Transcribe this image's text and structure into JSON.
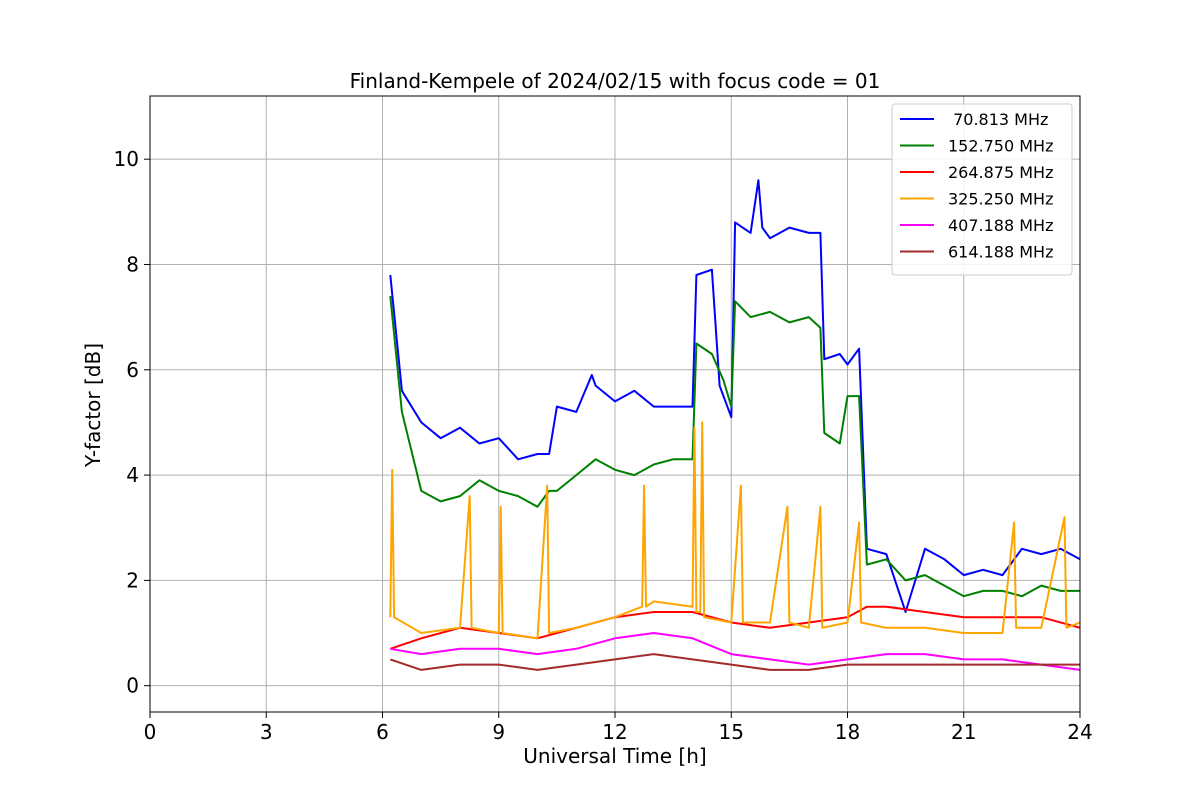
{
  "chart_data": {
    "type": "line",
    "title": "Finland-Kempele of 2024/02/15 with focus code = 01",
    "xlabel": "Universal Time [h]",
    "ylabel": "Y-factor [dB]",
    "xlim": [
      0,
      24
    ],
    "ylim": [
      -0.5,
      11.2
    ],
    "xticks": [
      0,
      3,
      6,
      9,
      12,
      15,
      18,
      21,
      24
    ],
    "yticks": [
      0,
      2,
      4,
      6,
      8,
      10
    ],
    "grid": true,
    "legend_position": "top-right",
    "series": [
      {
        "name": " 70.813 MHz",
        "color": "#0000ff",
        "points": [
          [
            6.2,
            7.8
          ],
          [
            6.5,
            5.6
          ],
          [
            7.0,
            5.0
          ],
          [
            7.5,
            4.7
          ],
          [
            8.0,
            4.9
          ],
          [
            8.5,
            4.6
          ],
          [
            9.0,
            4.7
          ],
          [
            9.5,
            4.3
          ],
          [
            10.0,
            4.4
          ],
          [
            10.3,
            4.4
          ],
          [
            10.5,
            5.3
          ],
          [
            11.0,
            5.2
          ],
          [
            11.4,
            5.9
          ],
          [
            11.5,
            5.7
          ],
          [
            12.0,
            5.4
          ],
          [
            12.5,
            5.6
          ],
          [
            13.0,
            5.3
          ],
          [
            13.5,
            5.3
          ],
          [
            14.0,
            5.3
          ],
          [
            14.1,
            7.8
          ],
          [
            14.5,
            7.9
          ],
          [
            14.7,
            5.7
          ],
          [
            15.0,
            5.1
          ],
          [
            15.1,
            8.8
          ],
          [
            15.5,
            8.6
          ],
          [
            15.7,
            9.6
          ],
          [
            15.8,
            8.7
          ],
          [
            16.0,
            8.5
          ],
          [
            16.5,
            8.7
          ],
          [
            17.0,
            8.6
          ],
          [
            17.3,
            8.6
          ],
          [
            17.4,
            6.2
          ],
          [
            17.8,
            6.3
          ],
          [
            18.0,
            6.1
          ],
          [
            18.3,
            6.4
          ],
          [
            18.5,
            2.6
          ],
          [
            19.0,
            2.5
          ],
          [
            19.5,
            1.4
          ],
          [
            20.0,
            2.6
          ],
          [
            20.5,
            2.4
          ],
          [
            21.0,
            2.1
          ],
          [
            21.5,
            2.2
          ],
          [
            22.0,
            2.1
          ],
          [
            22.5,
            2.6
          ],
          [
            23.0,
            2.5
          ],
          [
            23.5,
            2.6
          ],
          [
            24.0,
            2.4
          ]
        ]
      },
      {
        "name": "152.750 MHz",
        "color": "#008000",
        "points": [
          [
            6.2,
            7.4
          ],
          [
            6.5,
            5.2
          ],
          [
            7.0,
            3.7
          ],
          [
            7.5,
            3.5
          ],
          [
            8.0,
            3.6
          ],
          [
            8.5,
            3.9
          ],
          [
            9.0,
            3.7
          ],
          [
            9.5,
            3.6
          ],
          [
            10.0,
            3.4
          ],
          [
            10.3,
            3.7
          ],
          [
            10.5,
            3.7
          ],
          [
            11.0,
            4.0
          ],
          [
            11.5,
            4.3
          ],
          [
            12.0,
            4.1
          ],
          [
            12.5,
            4.0
          ],
          [
            13.0,
            4.2
          ],
          [
            13.5,
            4.3
          ],
          [
            14.0,
            4.3
          ],
          [
            14.1,
            6.5
          ],
          [
            14.5,
            6.3
          ],
          [
            14.8,
            5.8
          ],
          [
            15.0,
            5.3
          ],
          [
            15.1,
            7.3
          ],
          [
            15.5,
            7.0
          ],
          [
            16.0,
            7.1
          ],
          [
            16.5,
            6.9
          ],
          [
            17.0,
            7.0
          ],
          [
            17.3,
            6.8
          ],
          [
            17.4,
            4.8
          ],
          [
            17.8,
            4.6
          ],
          [
            18.0,
            5.5
          ],
          [
            18.3,
            5.5
          ],
          [
            18.5,
            2.3
          ],
          [
            19.0,
            2.4
          ],
          [
            19.5,
            2.0
          ],
          [
            20.0,
            2.1
          ],
          [
            20.5,
            1.9
          ],
          [
            21.0,
            1.7
          ],
          [
            21.5,
            1.8
          ],
          [
            22.0,
            1.8
          ],
          [
            22.5,
            1.7
          ],
          [
            23.0,
            1.9
          ],
          [
            23.5,
            1.8
          ],
          [
            24.0,
            1.8
          ]
        ]
      },
      {
        "name": "264.875 MHz",
        "color": "#ff0000",
        "points": [
          [
            6.2,
            0.7
          ],
          [
            7.0,
            0.9
          ],
          [
            8.0,
            1.1
          ],
          [
            9.0,
            1.0
          ],
          [
            10.0,
            0.9
          ],
          [
            11.0,
            1.1
          ],
          [
            12.0,
            1.3
          ],
          [
            13.0,
            1.4
          ],
          [
            14.0,
            1.4
          ],
          [
            15.0,
            1.2
          ],
          [
            16.0,
            1.1
          ],
          [
            17.0,
            1.2
          ],
          [
            18.0,
            1.3
          ],
          [
            18.5,
            1.5
          ],
          [
            19.0,
            1.5
          ],
          [
            20.0,
            1.4
          ],
          [
            21.0,
            1.3
          ],
          [
            22.0,
            1.3
          ],
          [
            23.0,
            1.3
          ],
          [
            24.0,
            1.1
          ]
        ]
      },
      {
        "name": "325.250 MHz",
        "color": "#ffa500",
        "points": [
          [
            6.2,
            1.3
          ],
          [
            6.25,
            4.1
          ],
          [
            6.3,
            1.3
          ],
          [
            7.0,
            1.0
          ],
          [
            8.0,
            1.1
          ],
          [
            8.25,
            3.6
          ],
          [
            8.3,
            1.1
          ],
          [
            9.0,
            1.0
          ],
          [
            9.05,
            3.4
          ],
          [
            9.1,
            1.0
          ],
          [
            10.0,
            0.9
          ],
          [
            10.25,
            3.8
          ],
          [
            10.3,
            1.0
          ],
          [
            11.0,
            1.1
          ],
          [
            12.0,
            1.3
          ],
          [
            12.7,
            1.5
          ],
          [
            12.75,
            3.8
          ],
          [
            12.8,
            1.5
          ],
          [
            13.0,
            1.6
          ],
          [
            14.0,
            1.5
          ],
          [
            14.05,
            4.9
          ],
          [
            14.1,
            1.4
          ],
          [
            14.2,
            1.4
          ],
          [
            14.25,
            5.0
          ],
          [
            14.3,
            1.3
          ],
          [
            15.0,
            1.2
          ],
          [
            15.25,
            3.8
          ],
          [
            15.3,
            1.2
          ],
          [
            16.0,
            1.2
          ],
          [
            16.45,
            3.4
          ],
          [
            16.5,
            1.2
          ],
          [
            17.0,
            1.1
          ],
          [
            17.3,
            3.4
          ],
          [
            17.35,
            1.1
          ],
          [
            18.0,
            1.2
          ],
          [
            18.3,
            3.1
          ],
          [
            18.35,
            1.2
          ],
          [
            19.0,
            1.1
          ],
          [
            20.0,
            1.1
          ],
          [
            21.0,
            1.0
          ],
          [
            22.0,
            1.0
          ],
          [
            22.3,
            3.1
          ],
          [
            22.35,
            1.1
          ],
          [
            23.0,
            1.1
          ],
          [
            23.6,
            3.2
          ],
          [
            23.65,
            1.1
          ],
          [
            24.0,
            1.2
          ]
        ]
      },
      {
        "name": "407.188 MHz",
        "color": "#ff00ff",
        "points": [
          [
            6.2,
            0.7
          ],
          [
            7.0,
            0.6
          ],
          [
            8.0,
            0.7
          ],
          [
            9.0,
            0.7
          ],
          [
            10.0,
            0.6
          ],
          [
            11.0,
            0.7
          ],
          [
            12.0,
            0.9
          ],
          [
            13.0,
            1.0
          ],
          [
            14.0,
            0.9
          ],
          [
            15.0,
            0.6
          ],
          [
            16.0,
            0.5
          ],
          [
            17.0,
            0.4
          ],
          [
            18.0,
            0.5
          ],
          [
            19.0,
            0.6
          ],
          [
            20.0,
            0.6
          ],
          [
            21.0,
            0.5
          ],
          [
            22.0,
            0.5
          ],
          [
            23.0,
            0.4
          ],
          [
            24.0,
            0.3
          ]
        ]
      },
      {
        "name": "614.188 MHz",
        "color": "#a52a2a",
        "points": [
          [
            6.2,
            0.5
          ],
          [
            7.0,
            0.3
          ],
          [
            8.0,
            0.4
          ],
          [
            9.0,
            0.4
          ],
          [
            10.0,
            0.3
          ],
          [
            11.0,
            0.4
          ],
          [
            12.0,
            0.5
          ],
          [
            13.0,
            0.6
          ],
          [
            14.0,
            0.5
          ],
          [
            15.0,
            0.4
          ],
          [
            16.0,
            0.3
          ],
          [
            17.0,
            0.3
          ],
          [
            18.0,
            0.4
          ],
          [
            19.0,
            0.4
          ],
          [
            20.0,
            0.4
          ],
          [
            21.0,
            0.4
          ],
          [
            22.0,
            0.4
          ],
          [
            23.0,
            0.4
          ],
          [
            24.0,
            0.4
          ]
        ]
      }
    ]
  }
}
